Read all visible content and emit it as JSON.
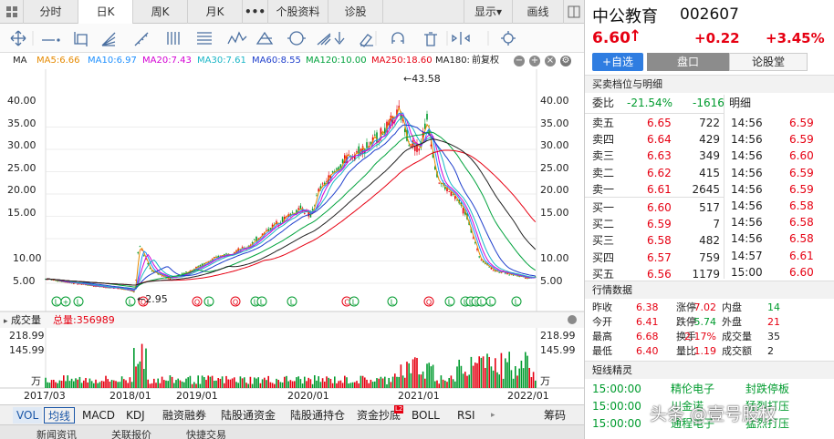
{
  "top_tabs": [
    "分时",
    "日K",
    "周K",
    "月K",
    "•••",
    "个股资料",
    "诊股",
    "显示",
    "画线"
  ],
  "top_tab_arrow": "▾",
  "ma": {
    "label": "MA",
    "ma5": "MA5:6.66",
    "ma10": "MA10:6.97",
    "ma20": "MA20:7.43",
    "ma30": "MA30:7.61",
    "ma60": "MA60:8.55",
    "ma120": "MA120:10.00",
    "ma250": "MA250:18.60",
    "ma180": "MA180:",
    "fq": "前复权",
    "colors": {
      "ma5": "#e68a00",
      "ma10": "#1e90ff",
      "ma20": "#d400d4",
      "ma30": "#1ab6c7",
      "ma60": "#1f3fcc",
      "ma120": "#00a23c",
      "ma250": "#e60012",
      "ma180": "#222222"
    }
  },
  "price_axis": [
    "40.00",
    "35.00",
    "30.00",
    "25.00",
    "20.00",
    "15.00",
    "10.00",
    "5.00"
  ],
  "annotations": {
    "high": "←43.58",
    "low": "←2.95"
  },
  "volume": {
    "label": "成交量",
    "total": "总量:356989",
    "axis_top": "218.99",
    "axis_mid": "145.99",
    "unit": "万"
  },
  "date_axis": [
    "2017/03",
    "2018/01",
    "2019/01",
    "2020/01",
    "2021/01",
    "2022/01"
  ],
  "indicator_tabs": [
    "VOL",
    "均线",
    "MACD",
    "KDJ",
    "融资融券",
    "陆股通资金",
    "陆股通持仓",
    "资金抄底",
    "BOLL",
    "RSI",
    "筹码"
  ],
  "indicator_badge": "L2",
  "bottom_tabs": [
    "新闻资讯",
    "关联报价",
    "快捷交易"
  ],
  "stock": {
    "name": "中公教育",
    "code": "002607",
    "price": "6.60",
    "arrow": "↑",
    "change": "+0.22",
    "pct": "+3.45%"
  },
  "buttons": {
    "watch": "+自选",
    "pankou": "盘口",
    "forum": "论股堂"
  },
  "orderbook": {
    "title": "买卖档位与明细",
    "weibi_label": "委比",
    "weibi_pct": "-21.54%",
    "weibi_val": "-1616",
    "detail_label": "明细",
    "rows": [
      {
        "label": "卖五",
        "price": "6.65",
        "vol": "722"
      },
      {
        "label": "卖四",
        "price": "6.64",
        "vol": "429"
      },
      {
        "label": "卖三",
        "price": "6.63",
        "vol": "349"
      },
      {
        "label": "卖二",
        "price": "6.62",
        "vol": "415"
      },
      {
        "label": "卖一",
        "price": "6.61",
        "vol": "2645"
      },
      {
        "label": "买一",
        "price": "6.60",
        "vol": "517"
      },
      {
        "label": "买二",
        "price": "6.59",
        "vol": "7"
      },
      {
        "label": "买三",
        "price": "6.58",
        "vol": "482"
      },
      {
        "label": "买四",
        "price": "6.57",
        "vol": "759"
      },
      {
        "label": "买五",
        "price": "6.56",
        "vol": "1179"
      }
    ]
  },
  "ticks": [
    {
      "time": "14:56",
      "price": "6.59"
    },
    {
      "time": "14:56",
      "price": "6.59"
    },
    {
      "time": "14:56",
      "price": "6.60"
    },
    {
      "time": "14:56",
      "price": "6.59"
    },
    {
      "time": "14:56",
      "price": "6.59"
    },
    {
      "time": "14:56",
      "price": "6.58"
    },
    {
      "time": "14:56",
      "price": "6.58"
    },
    {
      "time": "14:56",
      "price": "6.58"
    },
    {
      "time": "14:57",
      "price": "6.61"
    },
    {
      "time": "15:00",
      "price": "6.60"
    }
  ],
  "stats": {
    "title": "行情数据",
    "rows": [
      {
        "l1": "昨收",
        "v1": "6.38",
        "l2": "涨停",
        "v2": "7.02",
        "l3": "内盘",
        "v3": "14"
      },
      {
        "l1": "今开",
        "v1": "6.41",
        "l2": "跌停",
        "v2": "5.74",
        "l3": "外盘",
        "v3": "21"
      },
      {
        "l1": "最高",
        "v1": "6.68",
        "l2": "换手",
        "v2": "2.17%",
        "l3": "成交量",
        "v3": "35"
      },
      {
        "l1": "最低",
        "v1": "6.40",
        "l2": "量比",
        "v2": "1.19",
        "l3": "成交额",
        "v3": "2"
      }
    ]
  },
  "spirit": {
    "title": "短线精灵",
    "rows": [
      {
        "time": "15:00:00",
        "name": "精伦电子",
        "event": "封跌停板"
      },
      {
        "time": "15:00:00",
        "name": "川金诺",
        "event": "猛烈打压"
      },
      {
        "time": "15:00:00",
        "name": "通程电子",
        "event": "猛烈打压"
      }
    ]
  },
  "watermark": "头条 @壹号股权"
}
